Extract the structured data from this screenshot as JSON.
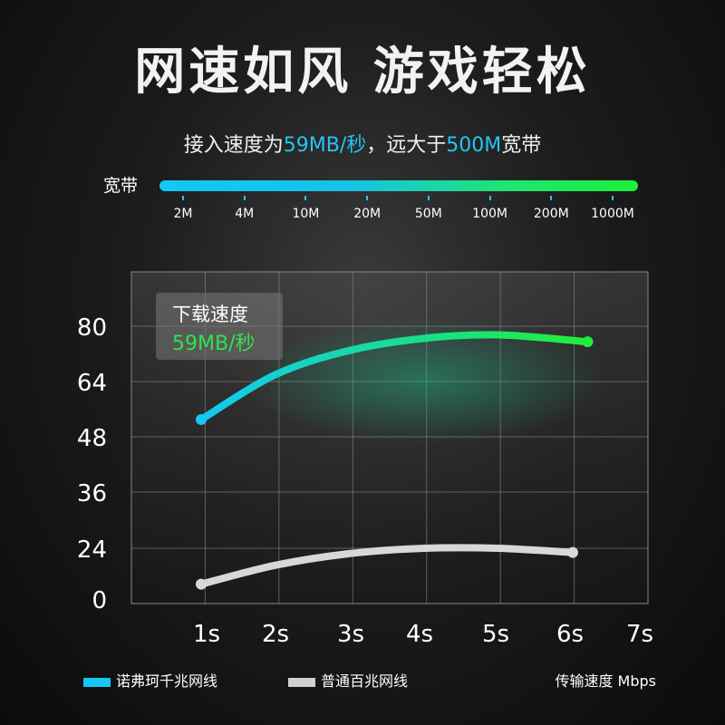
{
  "header": {
    "title": "网速如风 游戏轻松",
    "subtitle_prefix": "接入速度为",
    "subtitle_value1": "59MB/秒",
    "subtitle_mid": "，远大于",
    "subtitle_value2": "500M",
    "subtitle_suffix": "宽带"
  },
  "bandwidth_scale": {
    "label": "宽带",
    "ticks": [
      "2M",
      "4M",
      "10M",
      "20M",
      "50M",
      "100M",
      "200M",
      "1000M"
    ]
  },
  "tooltip": {
    "title": "下载速度",
    "value": "59MB/秒"
  },
  "legend": {
    "items": [
      {
        "name": "诺弗珂千兆网线",
        "color": "#16c6f2"
      },
      {
        "name": "普通百兆网线",
        "color": "#d0d0d0"
      }
    ],
    "unit_label": "传输速度 Mbps"
  },
  "chart_data": {
    "type": "line",
    "x_categories": [
      "1s",
      "2s",
      "3s",
      "4s",
      "5s",
      "6s",
      "7s"
    ],
    "y_ticks": [
      0,
      24,
      36,
      48,
      64,
      80
    ],
    "series": [
      {
        "name": "诺弗珂千兆网线",
        "color_start": "#14c8f4",
        "color_end": "#1ef03a",
        "points": [
          [
            1,
            53
          ],
          [
            2,
            66
          ],
          [
            3,
            73
          ],
          [
            4,
            76.5
          ],
          [
            5,
            77.5
          ],
          [
            6.2,
            75.5
          ]
        ]
      },
      {
        "name": "普通百兆网线",
        "color_start": "#d8d8d8",
        "color_end": "#d8d8d8",
        "points": [
          [
            1,
            7
          ],
          [
            2,
            16
          ],
          [
            3,
            21.5
          ],
          [
            4,
            24
          ],
          [
            5,
            24
          ],
          [
            6,
            22
          ]
        ]
      }
    ],
    "grid": true,
    "legend_position": "bottom"
  }
}
